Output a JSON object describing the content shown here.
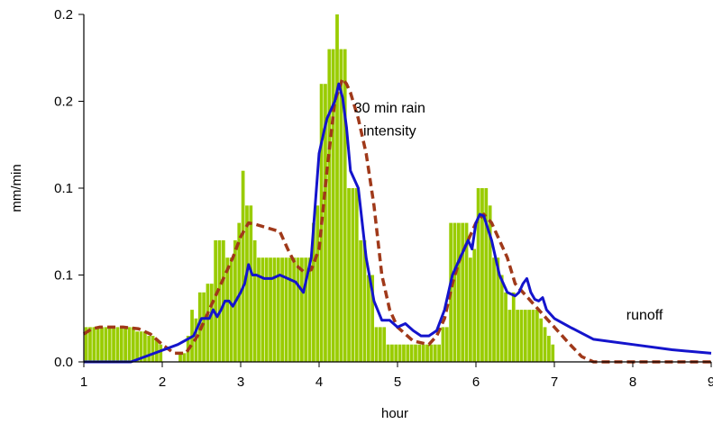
{
  "chart_data": {
    "type": "bar",
    "xlabel": "hour",
    "ylabel": "mm/min",
    "xlim": [
      1,
      9
    ],
    "ylim": [
      0,
      0.2
    ],
    "x_ticks": [
      1,
      2,
      3,
      4,
      5,
      6,
      7,
      8,
      9
    ],
    "x_tick_labels": [
      "1",
      "2",
      "3",
      "4",
      "5",
      "6",
      "7",
      "8",
      "9"
    ],
    "y_ticks": [
      0,
      0.05,
      0.1,
      0.15,
      0.2
    ],
    "y_tick_labels": [
      "0.0",
      "0.1",
      "0.1",
      "0.2",
      "0.2"
    ],
    "grid": false,
    "annotations": [
      {
        "text": "30 min rain",
        "x": 4.9,
        "y": 0.146
      },
      {
        "text": "intensity",
        "x": 4.9,
        "y": 0.133
      },
      {
        "text": "runoff",
        "x": 8.15,
        "y": 0.027
      }
    ],
    "bars": {
      "color": "#99CC00",
      "x": [
        1.03,
        1.08,
        1.13,
        1.18,
        1.23,
        1.28,
        1.33,
        1.38,
        1.43,
        1.48,
        1.53,
        1.58,
        1.63,
        1.68,
        1.73,
        1.78,
        1.83,
        1.88,
        1.93,
        1.98,
        2.03,
        2.08,
        2.13,
        2.18,
        2.23,
        2.28,
        2.33,
        2.38,
        2.43,
        2.48,
        2.53,
        2.58,
        2.63,
        2.68,
        2.73,
        2.78,
        2.83,
        2.88,
        2.93,
        2.98,
        3.03,
        3.08,
        3.13,
        3.18,
        3.23,
        3.28,
        3.33,
        3.38,
        3.43,
        3.48,
        3.53,
        3.58,
        3.63,
        3.68,
        3.73,
        3.78,
        3.83,
        3.88,
        3.93,
        3.98,
        4.03,
        4.08,
        4.13,
        4.18,
        4.23,
        4.28,
        4.33,
        4.38,
        4.43,
        4.48,
        4.53,
        4.58,
        4.63,
        4.68,
        4.73,
        4.78,
        4.83,
        4.88,
        4.93,
        4.98,
        5.03,
        5.08,
        5.13,
        5.18,
        5.23,
        5.28,
        5.33,
        5.38,
        5.43,
        5.48,
        5.53,
        5.58,
        5.63,
        5.68,
        5.73,
        5.78,
        5.83,
        5.88,
        5.93,
        5.98,
        6.03,
        6.08,
        6.13,
        6.18,
        6.23,
        6.28,
        6.33,
        6.38,
        6.43,
        6.48,
        6.53,
        6.58,
        6.63,
        6.68,
        6.73,
        6.78,
        6.83,
        6.88,
        6.93,
        6.98
      ],
      "values": [
        0.02,
        0.02,
        0.02,
        0.02,
        0.02,
        0.02,
        0.02,
        0.02,
        0.02,
        0.02,
        0.02,
        0.02,
        0.02,
        0.0175,
        0.0175,
        0.0175,
        0.015,
        0.015,
        0.0125,
        0.01,
        0,
        0,
        0,
        0,
        0.005,
        0.005,
        0.015,
        0.03,
        0.025,
        0.04,
        0.04,
        0.045,
        0.045,
        0.07,
        0.07,
        0.07,
        0.06,
        0.06,
        0.07,
        0.08,
        0.11,
        0.09,
        0.09,
        0.07,
        0.06,
        0.06,
        0.06,
        0.06,
        0.06,
        0.06,
        0.06,
        0.06,
        0.06,
        0.06,
        0.06,
        0.06,
        0.06,
        0.06,
        0.08,
        0.09,
        0.16,
        0.16,
        0.18,
        0.18,
        0.2,
        0.18,
        0.18,
        0.1,
        0.1,
        0.1,
        0.07,
        0.07,
        0.05,
        0.05,
        0.02,
        0.02,
        0.02,
        0.01,
        0.01,
        0.01,
        0.01,
        0.01,
        0.01,
        0.01,
        0.01,
        0.01,
        0.01,
        0.01,
        0.01,
        0.01,
        0.01,
        0.02,
        0.02,
        0.08,
        0.08,
        0.08,
        0.08,
        0.08,
        0.06,
        0.065,
        0.1,
        0.1,
        0.1,
        0.09,
        0.06,
        0.06,
        0.05,
        0.04,
        0.03,
        0.04,
        0.03,
        0.03,
        0.03,
        0.03,
        0.03,
        0.03,
        0.025,
        0.02,
        0.015,
        0.01
      ]
    },
    "series": [
      {
        "name": "30 min rain intensity",
        "style": "dashed",
        "color": "#A0391A",
        "x": [
          1.0,
          1.1,
          1.2,
          1.3,
          1.5,
          1.7,
          1.85,
          2.0,
          2.15,
          2.3,
          2.45,
          2.6,
          2.75,
          2.9,
          3.0,
          3.1,
          3.2,
          3.35,
          3.5,
          3.6,
          3.7,
          3.8,
          3.9,
          4.0,
          4.1,
          4.2,
          4.3,
          4.35,
          4.4,
          4.5,
          4.6,
          4.7,
          4.8,
          4.9,
          5.0,
          5.2,
          5.4,
          5.5,
          5.6,
          5.7,
          5.8,
          5.9,
          6.0,
          6.1,
          6.2,
          6.3,
          6.4,
          6.5,
          6.6,
          6.7,
          6.8,
          6.9,
          7.0,
          7.2,
          7.35,
          7.5,
          8.0,
          8.5,
          9.0
        ],
        "y": [
          0.016,
          0.019,
          0.02,
          0.02,
          0.02,
          0.019,
          0.016,
          0.01,
          0.005,
          0.005,
          0.015,
          0.03,
          0.045,
          0.06,
          0.072,
          0.08,
          0.079,
          0.077,
          0.075,
          0.065,
          0.056,
          0.052,
          0.053,
          0.065,
          0.11,
          0.15,
          0.163,
          0.16,
          0.155,
          0.14,
          0.12,
          0.09,
          0.05,
          0.03,
          0.02,
          0.012,
          0.01,
          0.015,
          0.025,
          0.045,
          0.06,
          0.07,
          0.08,
          0.085,
          0.08,
          0.07,
          0.06,
          0.045,
          0.04,
          0.035,
          0.03,
          0.025,
          0.02,
          0.01,
          0.003,
          0,
          0,
          0,
          0
        ]
      },
      {
        "name": "runoff",
        "style": "solid",
        "color": "#1414CC",
        "x": [
          1.0,
          1.3,
          1.6,
          1.9,
          2.2,
          2.4,
          2.5,
          2.6,
          2.65,
          2.7,
          2.75,
          2.8,
          2.85,
          2.9,
          3.0,
          3.05,
          3.1,
          3.15,
          3.2,
          3.3,
          3.4,
          3.5,
          3.6,
          3.7,
          3.8,
          3.9,
          4.0,
          4.05,
          4.1,
          4.2,
          4.25,
          4.3,
          4.35,
          4.4,
          4.5,
          4.6,
          4.7,
          4.8,
          4.9,
          5.0,
          5.1,
          5.2,
          5.3,
          5.4,
          5.5,
          5.6,
          5.7,
          5.8,
          5.85,
          5.9,
          5.95,
          6.0,
          6.05,
          6.1,
          6.2,
          6.3,
          6.4,
          6.5,
          6.55,
          6.6,
          6.65,
          6.7,
          6.75,
          6.8,
          6.85,
          6.9,
          7.0,
          7.2,
          7.5,
          8.0,
          8.5,
          9.0
        ],
        "y": [
          0,
          0,
          0,
          0.005,
          0.01,
          0.015,
          0.025,
          0.025,
          0.03,
          0.026,
          0.03,
          0.035,
          0.035,
          0.032,
          0.04,
          0.045,
          0.056,
          0.05,
          0.05,
          0.048,
          0.048,
          0.05,
          0.048,
          0.046,
          0.04,
          0.06,
          0.12,
          0.13,
          0.14,
          0.15,
          0.16,
          0.152,
          0.135,
          0.11,
          0.1,
          0.06,
          0.035,
          0.024,
          0.024,
          0.02,
          0.022,
          0.018,
          0.015,
          0.015,
          0.018,
          0.03,
          0.05,
          0.06,
          0.065,
          0.07,
          0.065,
          0.08,
          0.085,
          0.084,
          0.07,
          0.05,
          0.04,
          0.038,
          0.04,
          0.045,
          0.048,
          0.04,
          0.036,
          0.035,
          0.037,
          0.03,
          0.025,
          0.02,
          0.013,
          0.01,
          0.007,
          0.005
        ]
      }
    ]
  }
}
